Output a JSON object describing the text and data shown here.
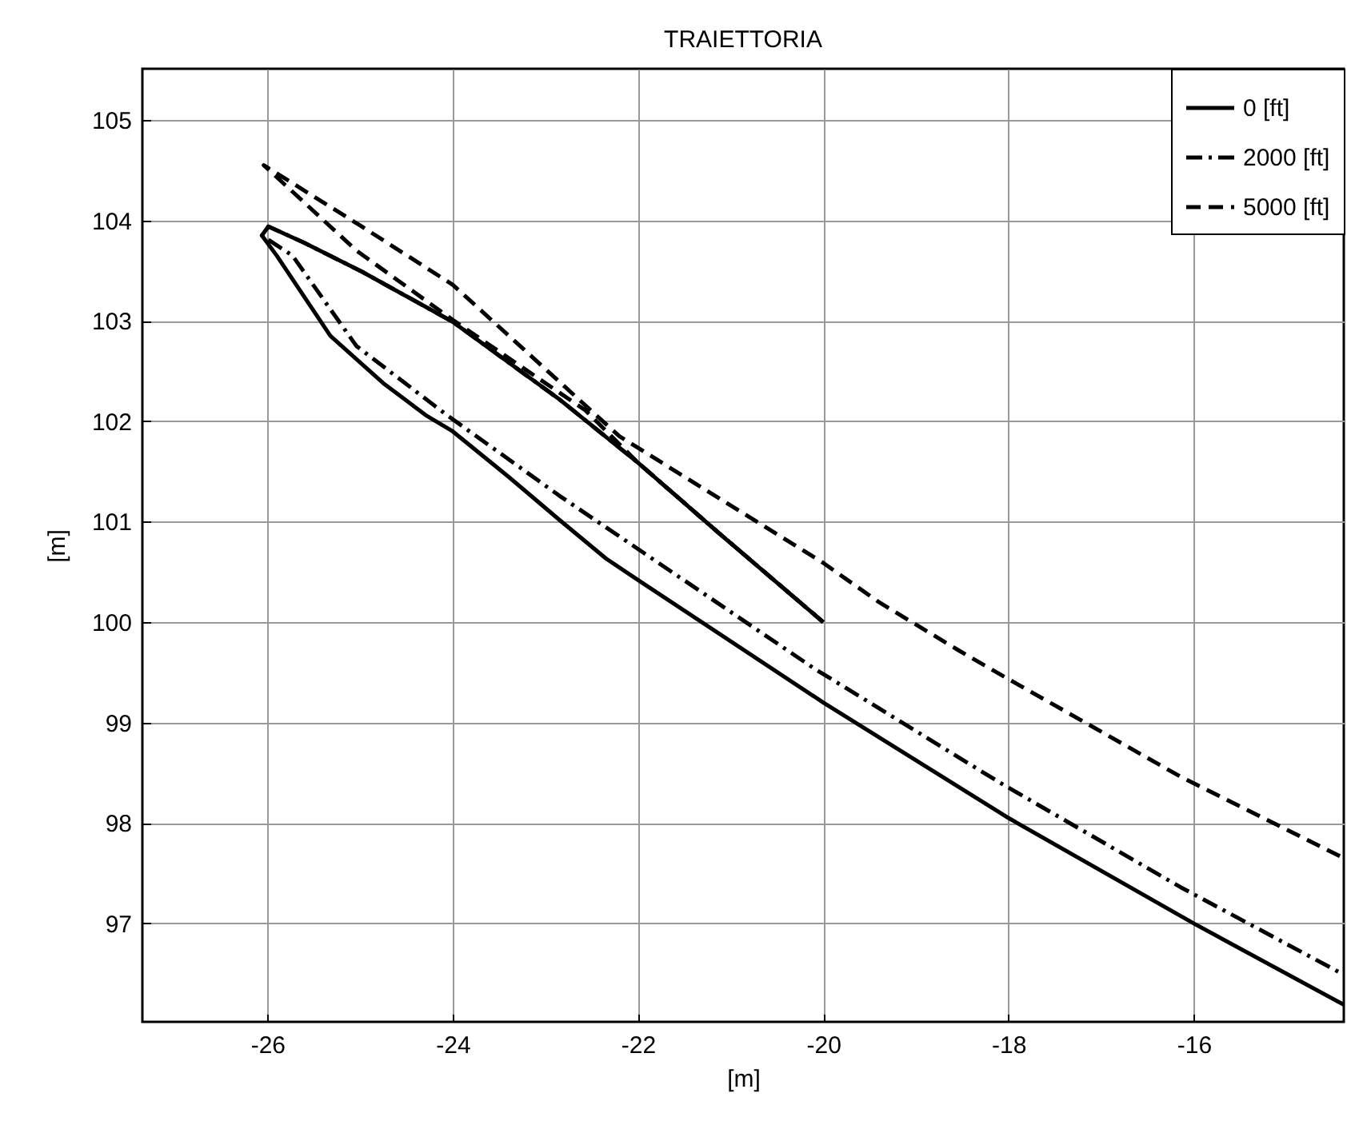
{
  "chart_data": {
    "type": "line",
    "title": "TRAIETTORIA",
    "xlabel": "[m]",
    "ylabel": "[m]",
    "xlim": [
      -27.35,
      -14.38
    ],
    "ylim": [
      96.02,
      105.51
    ],
    "xticks": [
      -26,
      -24,
      -22,
      -20,
      -18,
      -16
    ],
    "yticks": [
      97,
      98,
      99,
      100,
      101,
      102,
      103,
      104,
      105
    ],
    "grid": true,
    "legend": "top right",
    "series": [
      {
        "name": "0 [ft]",
        "color": "#000000",
        "line_style": "solid",
        "x": [
          -20,
          -21.13,
          -21.99,
          -22.85,
          -24,
          -24.98,
          -25.61,
          -25.99,
          -26.06,
          -25.9,
          -25.32,
          -24.75,
          -24.29,
          -24,
          -23.4,
          -22.85,
          -22.34,
          -22,
          -20,
          -18,
          -16,
          -14.38
        ],
        "values": [
          100,
          100.89,
          101.58,
          102.22,
          102.99,
          103.49,
          103.78,
          103.94,
          103.85,
          103.65,
          102.85,
          102.38,
          102.06,
          101.9,
          101.45,
          101.02,
          100.63,
          100.42,
          99.2,
          98.05,
          97.0,
          96.19
        ]
      },
      {
        "name": "2000 [ft]",
        "color": "#000000",
        "line_style": "dashdot",
        "x": [
          -20,
          -21.13,
          -21.99,
          -22.85,
          -24,
          -24.98,
          -25.61,
          -25.99,
          -26.06,
          -25.73,
          -25.04,
          -24.06,
          -22.85,
          -20.1,
          -18.09,
          -16.14,
          -14.38
        ],
        "values": [
          100,
          100.89,
          101.58,
          102.22,
          102.99,
          103.49,
          103.78,
          103.94,
          103.85,
          103.65,
          102.75,
          102.06,
          101.26,
          99.54,
          98.4,
          97.36,
          96.49
        ]
      },
      {
        "name": "5000 [ft]",
        "color": "#000000",
        "line_style": "dashed",
        "x": [
          -20,
          -21.13,
          -21.99,
          -22.57,
          -24,
          -25.04,
          -26.04,
          -25,
          -24,
          -22.2,
          -20,
          -19.4,
          -18.54,
          -18.09,
          -16.14,
          -14.38
        ],
        "values": [
          100,
          100.89,
          101.58,
          102.11,
          103.01,
          103.7,
          104.55,
          103.95,
          103.36,
          101.85,
          100.59,
          100.2,
          99.72,
          99.48,
          98.46,
          97.65
        ]
      }
    ]
  }
}
